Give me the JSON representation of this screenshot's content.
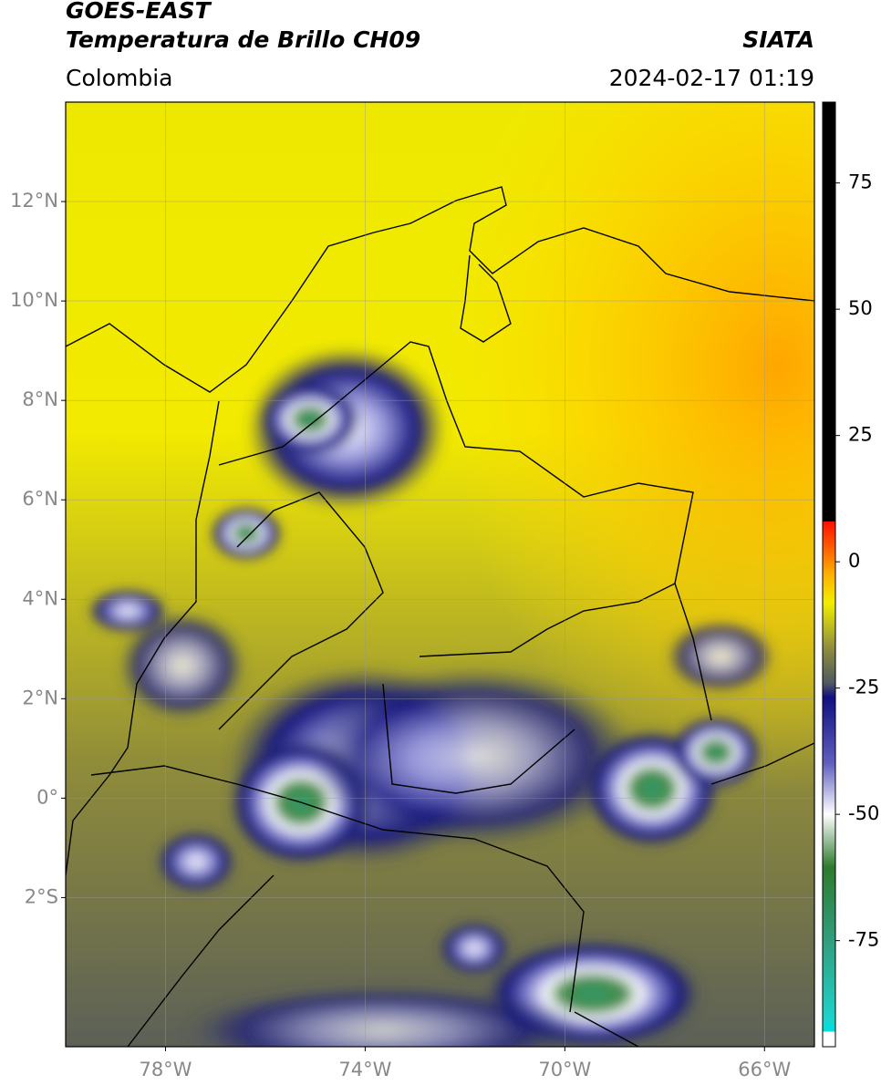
{
  "header": {
    "source": "GOES-EAST",
    "product": "Temperatura de Brillo CH09",
    "agency": "SIATA",
    "region": "Colombia",
    "datetime": "2024-02-17 01:19"
  },
  "map": {
    "xlim": [
      -80,
      -65
    ],
    "ylim": [
      -5,
      14
    ],
    "lon_ticks": [
      {
        "value": -78,
        "label": "78°W"
      },
      {
        "value": -74,
        "label": "74°W"
      },
      {
        "value": -70,
        "label": "70°W"
      },
      {
        "value": -66,
        "label": "66°W"
      }
    ],
    "lat_ticks": [
      {
        "value": 12,
        "label": "12°N"
      },
      {
        "value": 10,
        "label": "10°N"
      },
      {
        "value": 8,
        "label": "8°N"
      },
      {
        "value": 6,
        "label": "6°N"
      },
      {
        "value": 4,
        "label": "4°N"
      },
      {
        "value": 2,
        "label": "2°N"
      },
      {
        "value": 0,
        "label": "0°"
      },
      {
        "value": -2,
        "label": "2°S"
      }
    ]
  },
  "colorbar": {
    "lim": [
      -96,
      91
    ],
    "ticks": [
      75,
      50,
      25,
      0,
      -25,
      -50,
      -75
    ]
  }
}
